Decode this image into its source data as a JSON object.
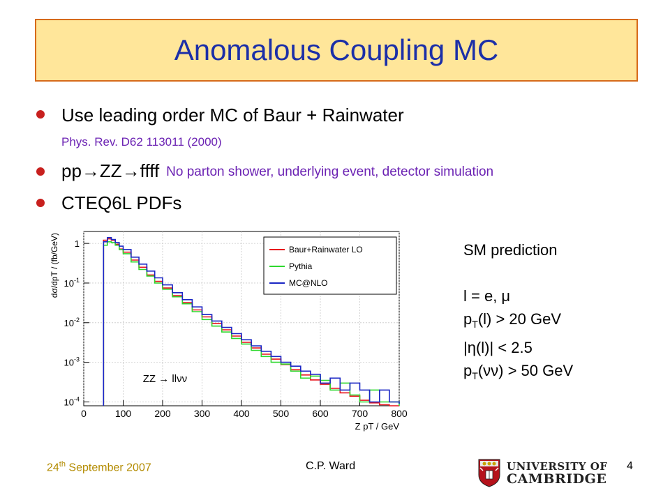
{
  "slide": {
    "title": "Anomalous Coupling MC",
    "bullets": [
      {
        "text": "Use leading order MC of Baur + Rainwater",
        "note": "Phys. Rev. D62 113011 (2000)"
      },
      {
        "text": "pp→ZZ→ffff",
        "note": "No parton shower, underlying event, detector simulation"
      },
      {
        "text": "CTEQ6L PDFs",
        "note": ""
      }
    ],
    "side_panel": {
      "heading": "SM prediction",
      "lines": [
        "l = e, μ"
      ],
      "cut1_pre": "p",
      "cut1_sub": "T",
      "cut1_post": "(l) > 20 GeV",
      "cut2": "|η(l)| < 2.5",
      "cut3_pre": "p",
      "cut3_sub": "T",
      "cut3_post": "(νν) > 50 GeV"
    },
    "footer": {
      "date_day": "24",
      "date_suffix": "th",
      "date_rest": " September 2007",
      "author": "C.P. Ward",
      "page": "4"
    },
    "logo": {
      "line1": "UNIVERSITY OF",
      "line2": "CAMBRIDGE"
    },
    "colors": {
      "title": "#1c2fa8",
      "title_bg": "#ffe69a",
      "title_border": "#d66a1a",
      "bullet": "#c8201e",
      "note": "#6b22b3",
      "date": "#b38b00"
    }
  },
  "chart_data": {
    "type": "line",
    "xlabel": "Z pT / GeV",
    "ylabel": "dσ/dpT / (fb/GeV)",
    "annotation": "ZZ → llνν",
    "xlim": [
      0,
      800
    ],
    "ylim": [
      8e-05,
      2
    ],
    "yscale": "log",
    "x_ticks": [
      "0",
      "100",
      "200",
      "300",
      "400",
      "500",
      "600",
      "700",
      "800"
    ],
    "y_ticks": [
      {
        "value": 1,
        "label": "1"
      },
      {
        "value": 0.1,
        "label": "10",
        "exp": "-1"
      },
      {
        "value": 0.01,
        "label": "10",
        "exp": "-2"
      },
      {
        "value": 0.001,
        "label": "10",
        "exp": "-3"
      },
      {
        "value": 0.0001,
        "label": "10",
        "exp": "-4"
      }
    ],
    "legend_position": "top-right",
    "grid": true,
    "x": [
      50,
      60,
      70,
      80,
      90,
      100,
      120,
      140,
      160,
      180,
      200,
      225,
      250,
      275,
      300,
      325,
      350,
      375,
      400,
      425,
      450,
      475,
      500,
      525,
      550,
      575,
      600,
      625,
      650,
      675,
      700,
      725,
      750,
      775,
      800
    ],
    "series": [
      {
        "name": "Baur+Rainwater LO",
        "color": "#e8141c",
        "values": [
          1.2,
          1.3,
          1.2,
          0.95,
          0.72,
          0.6,
          0.38,
          0.25,
          0.16,
          0.11,
          0.075,
          0.048,
          0.032,
          0.021,
          0.014,
          0.0095,
          0.0066,
          0.0046,
          0.0032,
          0.0023,
          0.0016,
          0.0012,
          0.00088,
          0.00065,
          0.00048,
          0.00036,
          0.00028,
          0.00022,
          0.00017,
          0.00014,
          0.00011,
          9.5e-05,
          8.5e-05,
          8e-05,
          8e-05
        ]
      },
      {
        "name": "Pythia",
        "color": "#2ed82e",
        "values": [
          0.9,
          1.1,
          1.05,
          0.9,
          0.7,
          0.55,
          0.34,
          0.22,
          0.15,
          0.1,
          0.07,
          0.045,
          0.03,
          0.019,
          0.012,
          0.0082,
          0.0058,
          0.004,
          0.0029,
          0.002,
          0.0014,
          0.001,
          0.0009,
          0.0006,
          0.0004,
          0.00045,
          0.00035,
          0.0002,
          0.0003,
          0.00015,
          0.0001,
          0.0002,
          0.0001,
          0.0001,
          8e-05
        ]
      },
      {
        "name": "MC@NLO",
        "color": "#1a26c4",
        "values": [
          1.1,
          1.4,
          1.25,
          1.05,
          0.85,
          0.7,
          0.45,
          0.3,
          0.2,
          0.135,
          0.09,
          0.057,
          0.038,
          0.025,
          0.016,
          0.011,
          0.0076,
          0.0053,
          0.0037,
          0.0026,
          0.0019,
          0.0014,
          0.001,
          0.0008,
          0.0006,
          0.0005,
          0.0003,
          0.0004,
          0.0002,
          0.0003,
          0.0002,
          0.0001,
          0.0002,
          0.0001,
          9e-05
        ]
      }
    ]
  }
}
